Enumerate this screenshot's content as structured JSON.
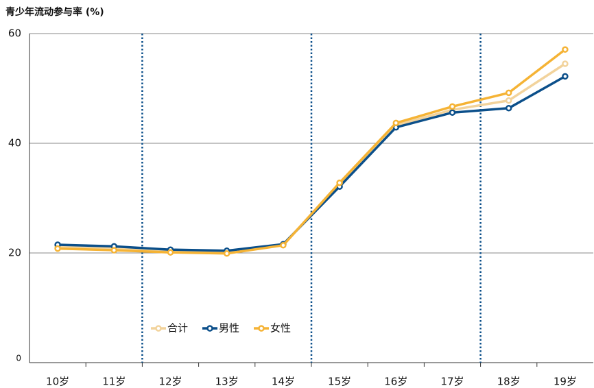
{
  "chart_data": {
    "type": "line",
    "title": "青少年流动参与率 (%)",
    "categories": [
      "10岁",
      "11岁",
      "12岁",
      "13岁",
      "14岁",
      "15岁",
      "16岁",
      "17岁",
      "18岁",
      "19岁"
    ],
    "series": [
      {
        "name": "合计",
        "color": "#f2d39c",
        "values": [
          21.1,
          20.8,
          20.4,
          20.2,
          21.5,
          32.5,
          43.3,
          46.1,
          47.8,
          54.5
        ]
      },
      {
        "name": "男性",
        "color": "#0b4f8a",
        "values": [
          21.5,
          21.2,
          20.6,
          20.4,
          21.6,
          32.1,
          42.9,
          45.6,
          46.4,
          52.2
        ]
      },
      {
        "name": "女性",
        "color": "#f5b335",
        "values": [
          20.8,
          20.5,
          20.1,
          19.9,
          21.4,
          32.8,
          43.7,
          46.7,
          49.2,
          57.1
        ]
      }
    ],
    "ylim": [
      0,
      60
    ],
    "yticks": [
      0,
      20,
      40,
      60
    ],
    "grid": true,
    "legend": "lower center"
  }
}
